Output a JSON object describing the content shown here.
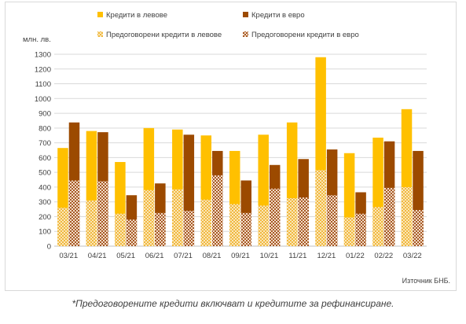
{
  "chart_data": {
    "type": "bar",
    "unit_label": "млн. лв.",
    "source": "Източник БНБ.",
    "categories": [
      "03/21",
      "04/21",
      "05/21",
      "06/21",
      "07/21",
      "08/21",
      "09/21",
      "10/21",
      "11/21",
      "12/21",
      "01/22",
      "02/22",
      "03/22"
    ],
    "ylim": [
      0,
      1300
    ],
    "yticks": [
      0,
      100,
      200,
      300,
      400,
      500,
      600,
      700,
      800,
      900,
      1000,
      1100,
      1200,
      1300
    ],
    "grid": true,
    "legend_position": "top",
    "series": [
      {
        "name": "Кредити в левове",
        "color": "#ffc000",
        "stack": "lev",
        "values": [
          665,
          780,
          570,
          800,
          790,
          750,
          645,
          755,
          838,
          1280,
          630,
          735,
          928
        ]
      },
      {
        "name": "Кредити в евро",
        "color": "#9c4a00",
        "stack": "eur",
        "values": [
          838,
          772,
          345,
          425,
          755,
          645,
          445,
          550,
          590,
          655,
          365,
          710,
          645
        ]
      },
      {
        "name": "Предоговорени кредити в левове",
        "pattern": "dots",
        "color": "#f2c46a",
        "stack": "lev",
        "values": [
          260,
          310,
          220,
          380,
          385,
          315,
          285,
          275,
          325,
          515,
          195,
          265,
          400
        ]
      },
      {
        "name": "Предоговорени кредити в евро",
        "pattern": "checker",
        "color": "#c0875a",
        "stack": "eur",
        "values": [
          445,
          440,
          180,
          225,
          240,
          480,
          225,
          390,
          330,
          345,
          220,
          395,
          245
        ]
      }
    ]
  },
  "footnote": "*Предоговорените кредити включват и кредитите за рефинансиране."
}
